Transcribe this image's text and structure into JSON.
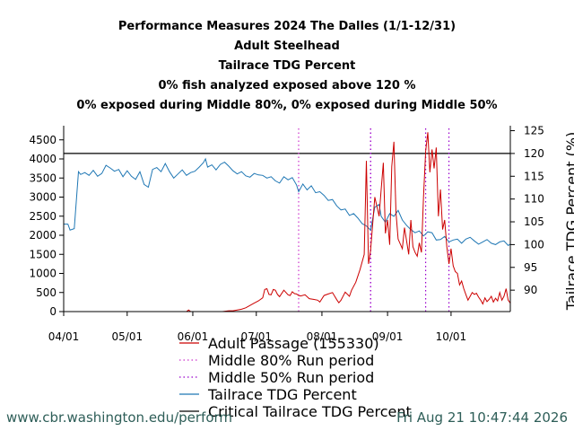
{
  "titles": {
    "line1": "Performance Measures 2024 The Dalles (1/1-12/31)",
    "line2": "Adult Steelhead",
    "line3": "Tailrace TDG Percent",
    "line4": "0% fish analyzed exposed above 120 %",
    "line5": "0% exposed during Middle 80%, 0% exposed during Middle 50%"
  },
  "footer": {
    "left": "www.cbr.washington.edu/perform",
    "right": "Fri Aug 21 10:47:44 2026"
  },
  "chart_data": {
    "type": "line",
    "x_axis": {
      "ticks": [
        "04/01",
        "05/01",
        "06/01",
        "07/01",
        "08/01",
        "09/01",
        "10/01"
      ],
      "tick_days": [
        0,
        30,
        61,
        91,
        122,
        153,
        183
      ],
      "range_days": [
        0,
        211
      ]
    },
    "y_left": {
      "label": "",
      "ticks": [
        "0",
        "500",
        "1000",
        "1500",
        "2000",
        "2500",
        "3000",
        "3500",
        "4000",
        "4500"
      ],
      "range": [
        0,
        4800
      ]
    },
    "y_right": {
      "label": "Tailrace TDG Percent (%)",
      "ticks": [
        "90",
        "95",
        "100",
        "105",
        "110",
        "115",
        "120",
        "125"
      ],
      "range": [
        85.3,
        125.5
      ]
    },
    "grid": false,
    "legend": [
      {
        "label": "Adult Passage (155330)",
        "color": "#cc0000",
        "style": "solid"
      },
      {
        "label": "Middle 80% Run period",
        "color": "#cc33cc",
        "style": "dotted"
      },
      {
        "label": "Middle 50% Run period",
        "color": "#9900cc",
        "style": "dotted"
      },
      {
        "label": "Tailrace TDG Percent",
        "color": "#1f77b4",
        "style": "solid"
      },
      {
        "label": "Critical Tailrace TDG Percent",
        "color": "#000000",
        "style": "solid"
      }
    ],
    "critical_tdg": 120,
    "middle80_days": [
      111,
      145
    ],
    "middle50_days": [
      145,
      171
    ],
    "extra_dotted_days": [
      182
    ],
    "series": [
      {
        "name": "Tailrace TDG Percent",
        "axis": "right",
        "color": "#1f77b4",
        "points": [
          [
            0,
            104.5
          ],
          [
            2,
            104.5
          ],
          [
            3,
            103.2
          ],
          [
            5,
            103.5
          ],
          [
            7,
            116.0
          ],
          [
            8,
            115.4
          ],
          [
            10,
            115.8
          ],
          [
            12,
            115.2
          ],
          [
            14,
            116.3
          ],
          [
            16,
            115.0
          ],
          [
            18,
            115.6
          ],
          [
            20,
            117.4
          ],
          [
            22,
            116.8
          ],
          [
            24,
            116.1
          ],
          [
            26,
            116.5
          ],
          [
            28,
            114.9
          ],
          [
            30,
            116.2
          ],
          [
            32,
            115.0
          ],
          [
            34,
            114.3
          ],
          [
            36,
            116.0
          ],
          [
            38,
            113.2
          ],
          [
            40,
            112.6
          ],
          [
            42,
            116.5
          ],
          [
            44,
            116.9
          ],
          [
            46,
            116.0
          ],
          [
            48,
            117.8
          ],
          [
            50,
            116.0
          ],
          [
            52,
            114.6
          ],
          [
            54,
            115.5
          ],
          [
            56,
            116.4
          ],
          [
            58,
            115.2
          ],
          [
            60,
            115.8
          ],
          [
            62,
            116.1
          ],
          [
            64,
            117.0
          ],
          [
            66,
            118.0
          ],
          [
            67,
            118.8
          ],
          [
            68,
            117.0
          ],
          [
            70,
            117.5
          ],
          [
            72,
            116.4
          ],
          [
            74,
            117.6
          ],
          [
            76,
            118.1
          ],
          [
            78,
            117.2
          ],
          [
            80,
            116.2
          ],
          [
            82,
            115.5
          ],
          [
            84,
            116.0
          ],
          [
            86,
            115.1
          ],
          [
            88,
            114.8
          ],
          [
            90,
            115.6
          ],
          [
            92,
            115.3
          ],
          [
            94,
            115.2
          ],
          [
            96,
            114.6
          ],
          [
            98,
            114.9
          ],
          [
            100,
            114.0
          ],
          [
            102,
            113.5
          ],
          [
            104,
            114.9
          ],
          [
            106,
            114.2
          ],
          [
            108,
            114.7
          ],
          [
            110,
            113.1
          ],
          [
            111,
            111.6
          ],
          [
            113,
            113.3
          ],
          [
            115,
            112.0
          ],
          [
            117,
            112.9
          ],
          [
            119,
            111.4
          ],
          [
            121,
            111.6
          ],
          [
            123,
            110.8
          ],
          [
            125,
            109.7
          ],
          [
            127,
            109.9
          ],
          [
            129,
            108.5
          ],
          [
            131,
            107.6
          ],
          [
            133,
            107.8
          ],
          [
            135,
            106.4
          ],
          [
            137,
            106.8
          ],
          [
            139,
            105.8
          ],
          [
            141,
            104.6
          ],
          [
            143,
            104.1
          ],
          [
            145,
            103.2
          ],
          [
            147,
            108.2
          ],
          [
            149,
            108.8
          ],
          [
            150,
            106.2
          ],
          [
            152,
            104.9
          ],
          [
            154,
            106.8
          ],
          [
            156,
            106.2
          ],
          [
            158,
            107.5
          ],
          [
            160,
            105.4
          ],
          [
            162,
            104.2
          ],
          [
            164,
            103.3
          ],
          [
            166,
            102.6
          ],
          [
            168,
            103.0
          ],
          [
            170,
            101.9
          ],
          [
            172,
            102.8
          ],
          [
            174,
            102.6
          ],
          [
            176,
            101.0
          ],
          [
            178,
            101.1
          ],
          [
            180,
            101.8
          ],
          [
            182,
            100.6
          ],
          [
            184,
            101.0
          ],
          [
            186,
            101.2
          ],
          [
            188,
            100.3
          ],
          [
            190,
            101.2
          ],
          [
            192,
            101.6
          ],
          [
            194,
            100.8
          ],
          [
            196,
            100.1
          ],
          [
            198,
            100.6
          ],
          [
            200,
            101.1
          ],
          [
            202,
            100.3
          ],
          [
            204,
            100.0
          ],
          [
            206,
            100.6
          ],
          [
            208,
            100.8
          ],
          [
            210,
            99.8
          ],
          [
            211,
            100.1
          ]
        ]
      },
      {
        "name": "Adult Passage (155330)",
        "axis": "left",
        "color": "#cc0000",
        "points": [
          [
            0,
            0
          ],
          [
            20,
            0
          ],
          [
            40,
            0
          ],
          [
            58,
            0
          ],
          [
            59,
            40
          ],
          [
            60,
            0
          ],
          [
            70,
            0
          ],
          [
            75,
            0
          ],
          [
            78,
            20
          ],
          [
            80,
            20
          ],
          [
            82,
            40
          ],
          [
            84,
            60
          ],
          [
            86,
            100
          ],
          [
            88,
            160
          ],
          [
            90,
            220
          ],
          [
            92,
            280
          ],
          [
            94,
            360
          ],
          [
            95,
            580
          ],
          [
            96,
            600
          ],
          [
            97,
            450
          ],
          [
            98,
            440
          ],
          [
            99,
            580
          ],
          [
            100,
            560
          ],
          [
            101,
            450
          ],
          [
            102,
            390
          ],
          [
            104,
            560
          ],
          [
            106,
            440
          ],
          [
            107,
            420
          ],
          [
            108,
            520
          ],
          [
            109,
            470
          ],
          [
            110,
            460
          ],
          [
            111,
            420
          ],
          [
            112,
            410
          ],
          [
            114,
            440
          ],
          [
            116,
            340
          ],
          [
            118,
            320
          ],
          [
            120,
            300
          ],
          [
            121,
            250
          ],
          [
            123,
            420
          ],
          [
            125,
            460
          ],
          [
            127,
            500
          ],
          [
            129,
            310
          ],
          [
            130,
            230
          ],
          [
            131,
            300
          ],
          [
            133,
            510
          ],
          [
            135,
            400
          ],
          [
            136,
            560
          ],
          [
            138,
            770
          ],
          [
            140,
            1100
          ],
          [
            142,
            1500
          ],
          [
            143,
            3950
          ],
          [
            144,
            1250
          ],
          [
            145,
            1600
          ],
          [
            147,
            3000
          ],
          [
            149,
            2500
          ],
          [
            150,
            3200
          ],
          [
            151,
            3900
          ],
          [
            152,
            2050
          ],
          [
            153,
            2400
          ],
          [
            154,
            1750
          ],
          [
            155,
            3800
          ],
          [
            156,
            4450
          ],
          [
            157,
            2600
          ],
          [
            158,
            1900
          ],
          [
            160,
            1650
          ],
          [
            161,
            2200
          ],
          [
            163,
            1500
          ],
          [
            164,
            2400
          ],
          [
            165,
            1700
          ],
          [
            166,
            1550
          ],
          [
            167,
            1450
          ],
          [
            168,
            1800
          ],
          [
            169,
            1550
          ],
          [
            170,
            3000
          ],
          [
            171,
            4200
          ],
          [
            172,
            4700
          ],
          [
            173,
            3650
          ],
          [
            174,
            4250
          ],
          [
            175,
            3750
          ],
          [
            176,
            4300
          ],
          [
            177,
            2500
          ],
          [
            178,
            3200
          ],
          [
            179,
            2150
          ],
          [
            180,
            2400
          ],
          [
            181,
            1700
          ],
          [
            182,
            1250
          ],
          [
            183,
            1650
          ],
          [
            184,
            1200
          ],
          [
            185,
            1050
          ],
          [
            186,
            1000
          ],
          [
            187,
            700
          ],
          [
            188,
            800
          ],
          [
            189,
            600
          ],
          [
            190,
            450
          ],
          [
            191,
            300
          ],
          [
            192,
            400
          ],
          [
            193,
            500
          ],
          [
            194,
            450
          ],
          [
            195,
            480
          ],
          [
            196,
            380
          ],
          [
            197,
            300
          ],
          [
            198,
            200
          ],
          [
            199,
            360
          ],
          [
            200,
            260
          ],
          [
            201,
            320
          ],
          [
            202,
            400
          ],
          [
            203,
            250
          ],
          [
            204,
            350
          ],
          [
            205,
            280
          ],
          [
            206,
            500
          ],
          [
            207,
            300
          ],
          [
            208,
            400
          ],
          [
            209,
            600
          ],
          [
            210,
            300
          ],
          [
            211,
            220
          ]
        ]
      }
    ]
  }
}
